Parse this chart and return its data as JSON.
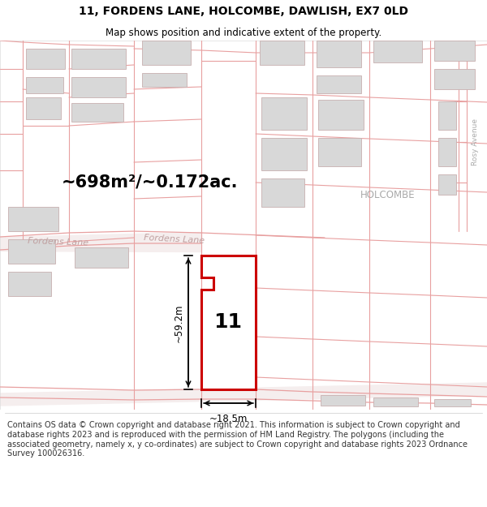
{
  "title_line1": "11, FORDENS LANE, HOLCOMBE, DAWLISH, EX7 0LD",
  "title_line2": "Map shows position and indicative extent of the property.",
  "footer_text": "Contains OS data © Crown copyright and database right 2021. This information is subject to Crown copyright and database rights 2023 and is reproduced with the permission of HM Land Registry. The polygons (including the associated geometry, namely x, y co-ordinates) are subject to Crown copyright and database rights 2023 Ordnance Survey 100026316.",
  "area_label": "~698m²/~0.172ac.",
  "length_label": "~59.2m",
  "width_label": "~18.5m",
  "number_label": "11",
  "street_label_left": "Fordens Lane",
  "street_label_right": "Fordens Lane",
  "holcombe_label": "HOLCOMBE",
  "rosy_avenue_label": "Rosy Avenue",
  "bg_color": "#ffffff",
  "plot_outline_color": "#cc0000",
  "plot_fill": "#ffffff",
  "road_line_color": "#e8a0a0",
  "building_fill": "#d8d8d8",
  "building_outline": "#c8b0b0",
  "dim_line_color": "#000000",
  "text_color": "#000000",
  "street_text_color": "#c0a0a0",
  "gray_label_color": "#aaaaaa",
  "title_fontsize": 10,
  "subtitle_fontsize": 8.5,
  "footer_fontsize": 7,
  "area_fontsize": 15,
  "number_fontsize": 18,
  "dim_fontsize": 8.5,
  "street_fontsize": 8,
  "label_fontsize": 8.5
}
